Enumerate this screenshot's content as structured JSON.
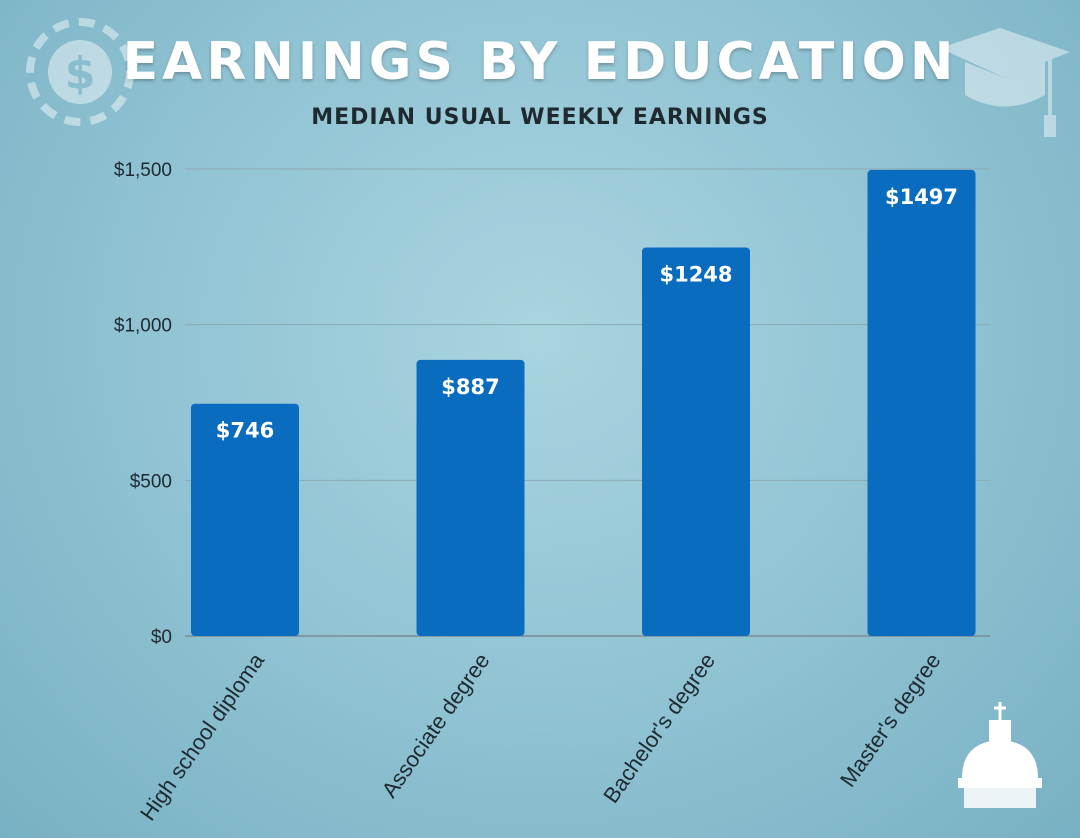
{
  "chart_data": {
    "type": "bar",
    "title": "EARNINGS BY EDUCATION",
    "subtitle": "MEDIAN USUAL WEEKLY EARNINGS",
    "categories": [
      "High school diploma",
      "Associate degree",
      "Bachelor's degree",
      "Master's degree"
    ],
    "values": [
      746,
      887,
      1248,
      1497
    ],
    "value_labels": [
      "$746",
      "$887",
      "$1248",
      "$1497"
    ],
    "yticks": [
      0,
      500,
      1000,
      1500
    ],
    "ytick_labels": [
      "$0",
      "$500",
      "$1,000",
      "$1,500"
    ],
    "ylim": [
      0,
      1500
    ],
    "xlabel": "",
    "ylabel": "",
    "grid": true,
    "bar_color": "#0a6cbf"
  }
}
